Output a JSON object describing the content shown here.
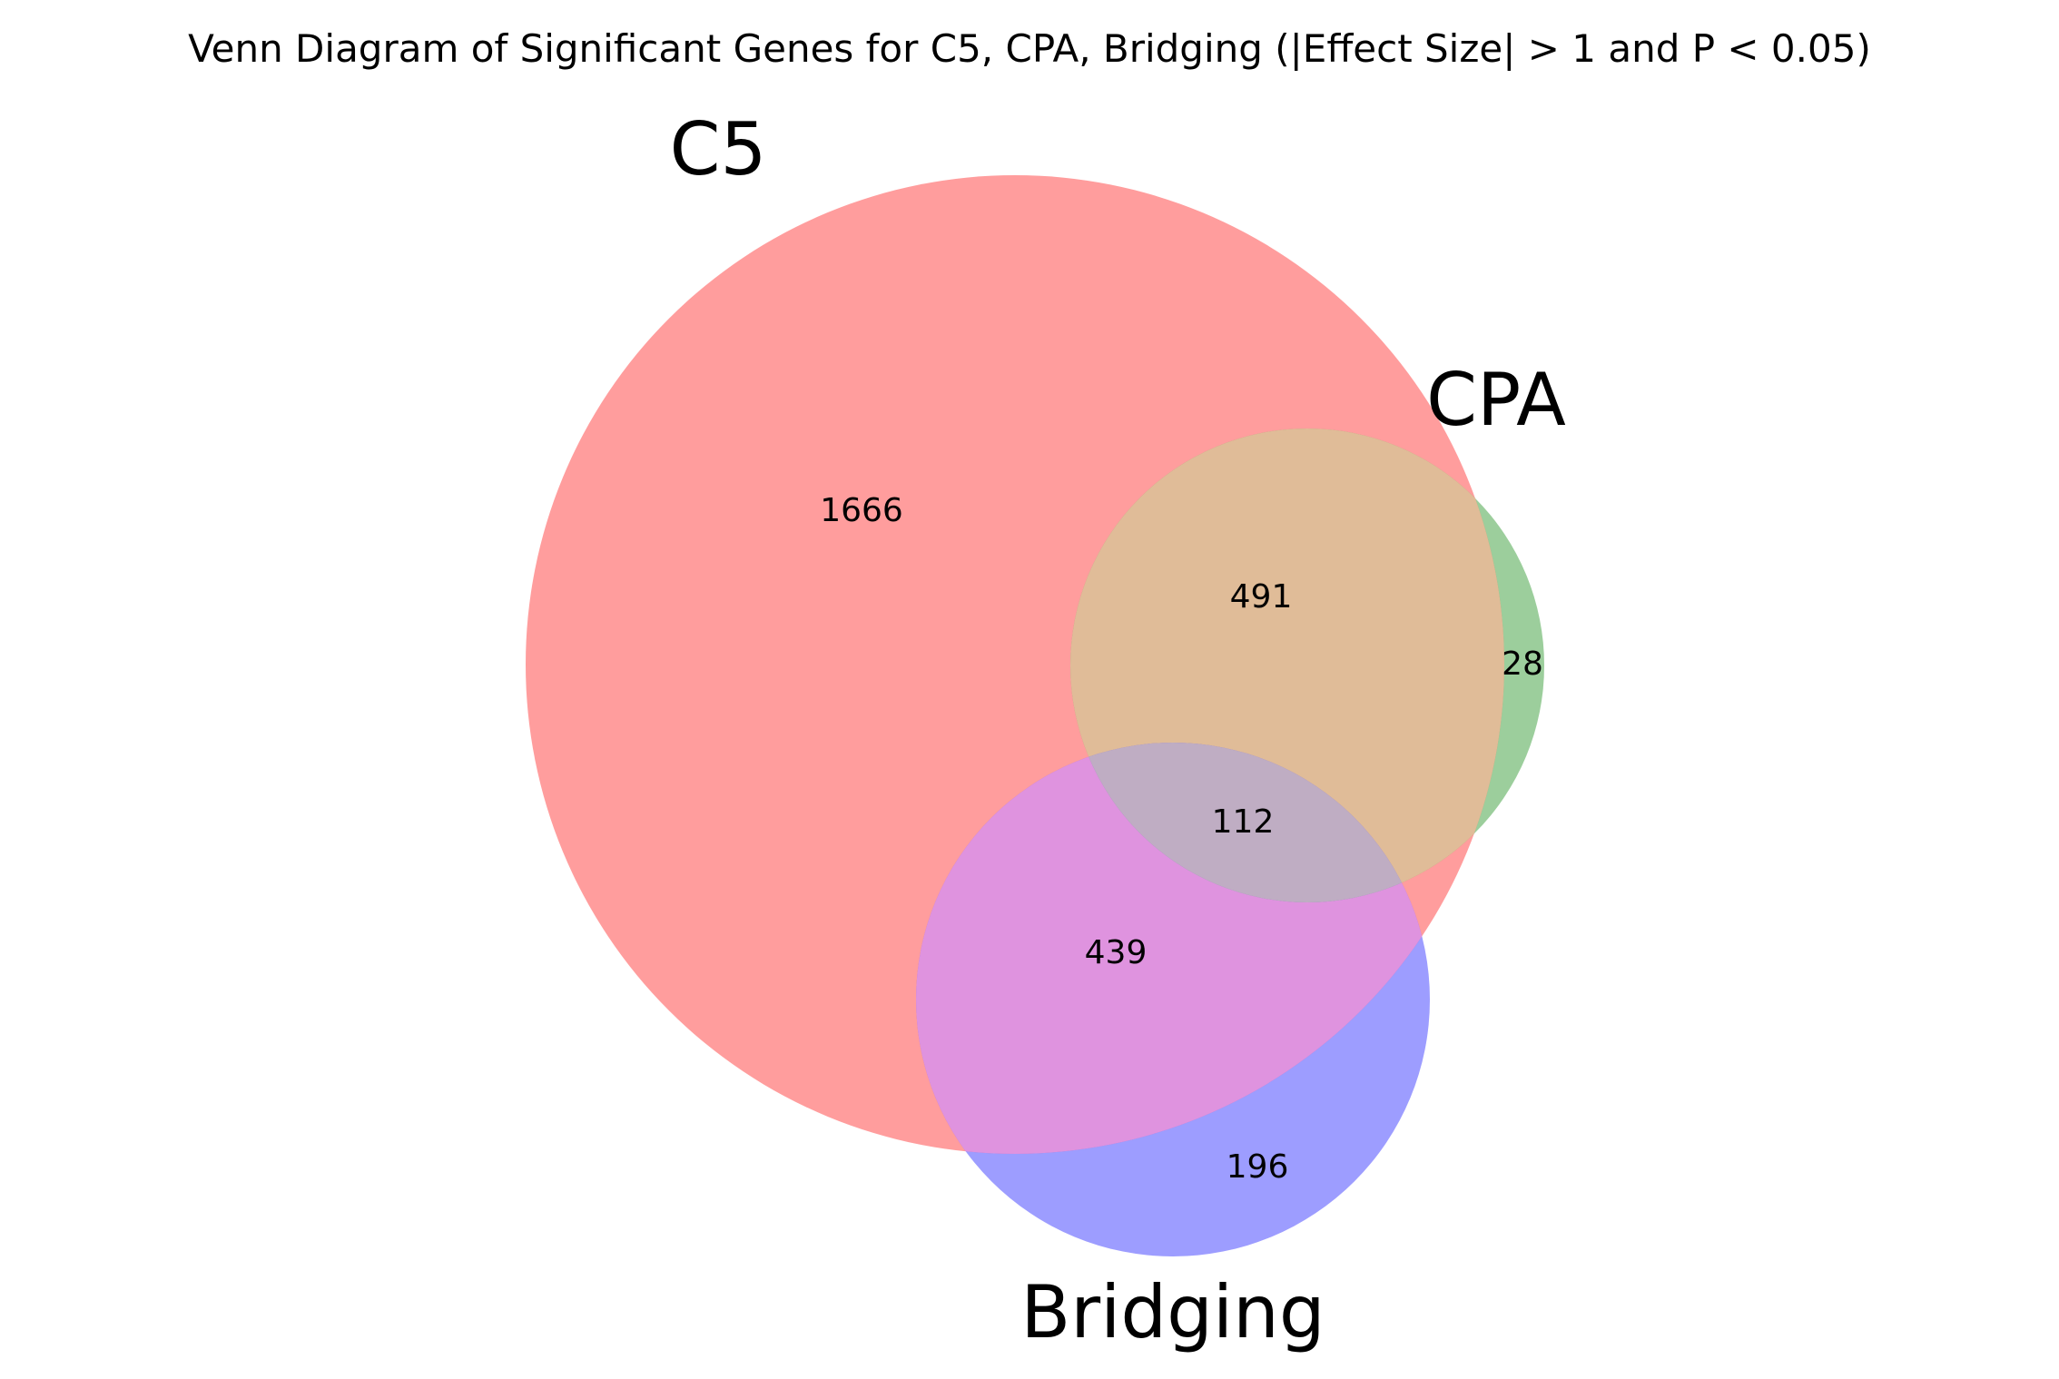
{
  "title": "Venn Diagram of Significant Genes for C5, CPA, Bridging (|Effect Size| > 1 and P < 0.05)",
  "colors": {
    "c5": "#ff3b3b",
    "cpa": "#3a9e3a",
    "bridging": "#3b3bff",
    "c5_cpa": "#e0bc98",
    "c5_bridging": "#df93df",
    "cpa_bridging": "#7f7fb3",
    "all_three": "#bfadc3"
  },
  "sets": [
    {
      "id": "c5",
      "label": "C5"
    },
    {
      "id": "cpa",
      "label": "CPA"
    },
    {
      "id": "bridging",
      "label": "Bridging"
    }
  ],
  "regions": {
    "c5_only": "1666",
    "cpa_only": "28",
    "bridging_only": "196",
    "c5_cpa": "491",
    "c5_bridging": "439",
    "all_three": "112"
  }
}
